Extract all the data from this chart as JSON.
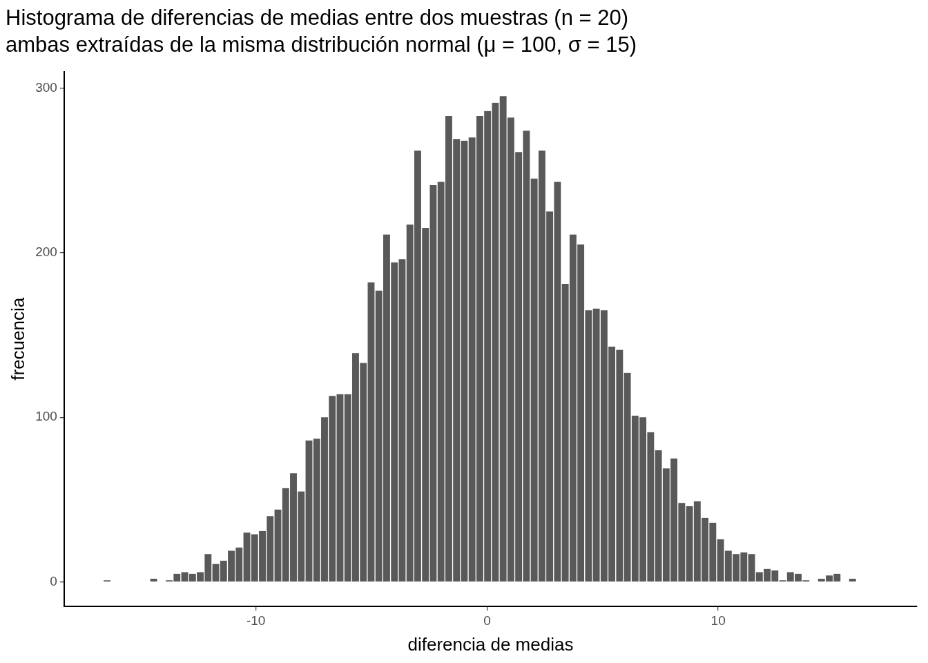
{
  "chart_data": {
    "type": "histogram",
    "title": "Histograma de diferencias de medias entre dos muestras (n = 20)\nambas extraídas de la misma distribución normal (μ = 100, σ = 15)",
    "xlabel": "diferencia de medias",
    "ylabel": "frecuencia",
    "color": "#595959",
    "bins": [
      -16.61,
      -16.274,
      -15.938,
      -15.602,
      -15.266,
      -14.93,
      -14.594,
      -14.258,
      -13.922,
      -13.586,
      -13.25,
      -12.914,
      -12.578,
      -12.242,
      -11.906,
      -11.57,
      -11.234,
      -10.898,
      -10.562,
      -10.226,
      -9.89,
      -9.554,
      -9.218,
      -8.882,
      -8.546,
      -8.21,
      -7.874,
      -7.538,
      -7.202,
      -6.866,
      -6.53,
      -6.194,
      -5.858,
      -5.522,
      -5.186,
      -4.85,
      -4.514,
      -4.178,
      -3.842,
      -3.506,
      -3.17,
      -2.834,
      -2.498,
      -2.162,
      -1.826,
      -1.49,
      -1.154,
      -0.818,
      -0.482,
      -0.146,
      0.19,
      0.526,
      0.862,
      1.198,
      1.534,
      1.87,
      2.206,
      2.542,
      2.878,
      3.214,
      3.55,
      3.886,
      4.222,
      4.558,
      4.894,
      5.23,
      5.566,
      5.902,
      6.238,
      6.574,
      6.91,
      7.246,
      7.582,
      7.918,
      8.254,
      8.59,
      8.926,
      9.262,
      9.598,
      9.934,
      10.27,
      10.606,
      10.942,
      11.278,
      11.614,
      11.95,
      12.286,
      12.622,
      12.958,
      13.294,
      13.63,
      13.966,
      14.302,
      14.638,
      14.974,
      15.31,
      15.646,
      15.982
    ],
    "values": [
      1,
      0,
      0,
      0,
      0,
      0,
      2,
      0,
      1,
      5,
      6,
      5,
      6,
      17,
      11,
      13,
      19,
      21,
      30,
      29,
      31,
      40,
      44,
      57,
      66,
      55,
      86,
      87,
      100,
      113,
      114,
      114,
      139,
      133,
      182,
      177,
      211,
      194,
      196,
      217,
      262,
      215,
      241,
      243,
      283,
      269,
      268,
      270,
      283,
      286,
      291,
      295,
      282,
      261,
      274,
      245,
      262,
      225,
      243,
      181,
      211,
      205,
      165,
      166,
      165,
      143,
      141,
      127,
      101,
      100,
      91,
      80,
      69,
      75,
      48,
      46,
      49,
      39,
      36,
      26,
      19,
      17,
      18,
      17,
      6,
      8,
      7,
      1,
      6,
      5,
      1,
      0,
      2,
      4,
      5,
      0,
      2
    ],
    "xlim": [
      -18.3,
      18.6
    ],
    "ylim": [
      -14.8,
      310
    ],
    "xticks": [
      -10,
      0,
      10
    ],
    "yticks": [
      0,
      100,
      200,
      300
    ],
    "grid": false,
    "legend": false
  }
}
